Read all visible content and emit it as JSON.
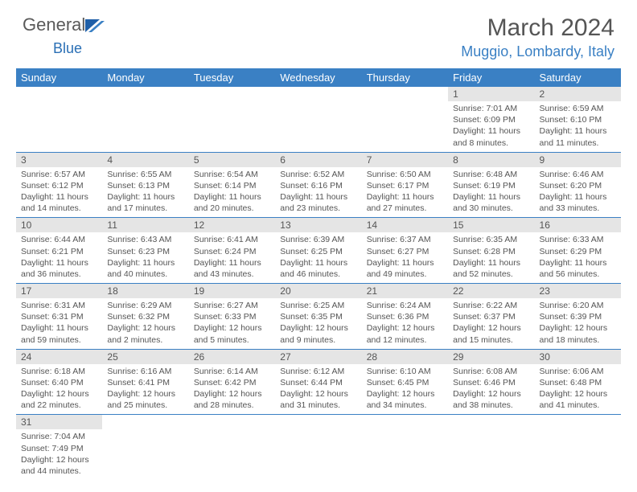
{
  "brand": {
    "part1": "General",
    "part2": "Blue"
  },
  "title": "March 2024",
  "location": "Muggio, Lombardy, Italy",
  "colors": {
    "header_bg": "#3a80c4",
    "header_text": "#ffffff",
    "daynum_bg": "#e5e5e5",
    "text": "#555555",
    "accent": "#3a80c4",
    "border": "#3a80c4",
    "background": "#ffffff"
  },
  "typography": {
    "title_fontsize": 30,
    "location_fontsize": 18,
    "dayheader_fontsize": 13,
    "daynum_fontsize": 12,
    "detail_fontsize": 10.5
  },
  "day_headers": [
    "Sunday",
    "Monday",
    "Tuesday",
    "Wednesday",
    "Thursday",
    "Friday",
    "Saturday"
  ],
  "weeks": [
    [
      null,
      null,
      null,
      null,
      null,
      {
        "n": "1",
        "sr": "Sunrise: 7:01 AM",
        "ss": "Sunset: 6:09 PM",
        "dl1": "Daylight: 11 hours",
        "dl2": "and 8 minutes."
      },
      {
        "n": "2",
        "sr": "Sunrise: 6:59 AM",
        "ss": "Sunset: 6:10 PM",
        "dl1": "Daylight: 11 hours",
        "dl2": "and 11 minutes."
      }
    ],
    [
      {
        "n": "3",
        "sr": "Sunrise: 6:57 AM",
        "ss": "Sunset: 6:12 PM",
        "dl1": "Daylight: 11 hours",
        "dl2": "and 14 minutes."
      },
      {
        "n": "4",
        "sr": "Sunrise: 6:55 AM",
        "ss": "Sunset: 6:13 PM",
        "dl1": "Daylight: 11 hours",
        "dl2": "and 17 minutes."
      },
      {
        "n": "5",
        "sr": "Sunrise: 6:54 AM",
        "ss": "Sunset: 6:14 PM",
        "dl1": "Daylight: 11 hours",
        "dl2": "and 20 minutes."
      },
      {
        "n": "6",
        "sr": "Sunrise: 6:52 AM",
        "ss": "Sunset: 6:16 PM",
        "dl1": "Daylight: 11 hours",
        "dl2": "and 23 minutes."
      },
      {
        "n": "7",
        "sr": "Sunrise: 6:50 AM",
        "ss": "Sunset: 6:17 PM",
        "dl1": "Daylight: 11 hours",
        "dl2": "and 27 minutes."
      },
      {
        "n": "8",
        "sr": "Sunrise: 6:48 AM",
        "ss": "Sunset: 6:19 PM",
        "dl1": "Daylight: 11 hours",
        "dl2": "and 30 minutes."
      },
      {
        "n": "9",
        "sr": "Sunrise: 6:46 AM",
        "ss": "Sunset: 6:20 PM",
        "dl1": "Daylight: 11 hours",
        "dl2": "and 33 minutes."
      }
    ],
    [
      {
        "n": "10",
        "sr": "Sunrise: 6:44 AM",
        "ss": "Sunset: 6:21 PM",
        "dl1": "Daylight: 11 hours",
        "dl2": "and 36 minutes."
      },
      {
        "n": "11",
        "sr": "Sunrise: 6:43 AM",
        "ss": "Sunset: 6:23 PM",
        "dl1": "Daylight: 11 hours",
        "dl2": "and 40 minutes."
      },
      {
        "n": "12",
        "sr": "Sunrise: 6:41 AM",
        "ss": "Sunset: 6:24 PM",
        "dl1": "Daylight: 11 hours",
        "dl2": "and 43 minutes."
      },
      {
        "n": "13",
        "sr": "Sunrise: 6:39 AM",
        "ss": "Sunset: 6:25 PM",
        "dl1": "Daylight: 11 hours",
        "dl2": "and 46 minutes."
      },
      {
        "n": "14",
        "sr": "Sunrise: 6:37 AM",
        "ss": "Sunset: 6:27 PM",
        "dl1": "Daylight: 11 hours",
        "dl2": "and 49 minutes."
      },
      {
        "n": "15",
        "sr": "Sunrise: 6:35 AM",
        "ss": "Sunset: 6:28 PM",
        "dl1": "Daylight: 11 hours",
        "dl2": "and 52 minutes."
      },
      {
        "n": "16",
        "sr": "Sunrise: 6:33 AM",
        "ss": "Sunset: 6:29 PM",
        "dl1": "Daylight: 11 hours",
        "dl2": "and 56 minutes."
      }
    ],
    [
      {
        "n": "17",
        "sr": "Sunrise: 6:31 AM",
        "ss": "Sunset: 6:31 PM",
        "dl1": "Daylight: 11 hours",
        "dl2": "and 59 minutes."
      },
      {
        "n": "18",
        "sr": "Sunrise: 6:29 AM",
        "ss": "Sunset: 6:32 PM",
        "dl1": "Daylight: 12 hours",
        "dl2": "and 2 minutes."
      },
      {
        "n": "19",
        "sr": "Sunrise: 6:27 AM",
        "ss": "Sunset: 6:33 PM",
        "dl1": "Daylight: 12 hours",
        "dl2": "and 5 minutes."
      },
      {
        "n": "20",
        "sr": "Sunrise: 6:25 AM",
        "ss": "Sunset: 6:35 PM",
        "dl1": "Daylight: 12 hours",
        "dl2": "and 9 minutes."
      },
      {
        "n": "21",
        "sr": "Sunrise: 6:24 AM",
        "ss": "Sunset: 6:36 PM",
        "dl1": "Daylight: 12 hours",
        "dl2": "and 12 minutes."
      },
      {
        "n": "22",
        "sr": "Sunrise: 6:22 AM",
        "ss": "Sunset: 6:37 PM",
        "dl1": "Daylight: 12 hours",
        "dl2": "and 15 minutes."
      },
      {
        "n": "23",
        "sr": "Sunrise: 6:20 AM",
        "ss": "Sunset: 6:39 PM",
        "dl1": "Daylight: 12 hours",
        "dl2": "and 18 minutes."
      }
    ],
    [
      {
        "n": "24",
        "sr": "Sunrise: 6:18 AM",
        "ss": "Sunset: 6:40 PM",
        "dl1": "Daylight: 12 hours",
        "dl2": "and 22 minutes."
      },
      {
        "n": "25",
        "sr": "Sunrise: 6:16 AM",
        "ss": "Sunset: 6:41 PM",
        "dl1": "Daylight: 12 hours",
        "dl2": "and 25 minutes."
      },
      {
        "n": "26",
        "sr": "Sunrise: 6:14 AM",
        "ss": "Sunset: 6:42 PM",
        "dl1": "Daylight: 12 hours",
        "dl2": "and 28 minutes."
      },
      {
        "n": "27",
        "sr": "Sunrise: 6:12 AM",
        "ss": "Sunset: 6:44 PM",
        "dl1": "Daylight: 12 hours",
        "dl2": "and 31 minutes."
      },
      {
        "n": "28",
        "sr": "Sunrise: 6:10 AM",
        "ss": "Sunset: 6:45 PM",
        "dl1": "Daylight: 12 hours",
        "dl2": "and 34 minutes."
      },
      {
        "n": "29",
        "sr": "Sunrise: 6:08 AM",
        "ss": "Sunset: 6:46 PM",
        "dl1": "Daylight: 12 hours",
        "dl2": "and 38 minutes."
      },
      {
        "n": "30",
        "sr": "Sunrise: 6:06 AM",
        "ss": "Sunset: 6:48 PM",
        "dl1": "Daylight: 12 hours",
        "dl2": "and 41 minutes."
      }
    ],
    [
      {
        "n": "31",
        "sr": "Sunrise: 7:04 AM",
        "ss": "Sunset: 7:49 PM",
        "dl1": "Daylight: 12 hours",
        "dl2": "and 44 minutes."
      },
      null,
      null,
      null,
      null,
      null,
      null
    ]
  ]
}
